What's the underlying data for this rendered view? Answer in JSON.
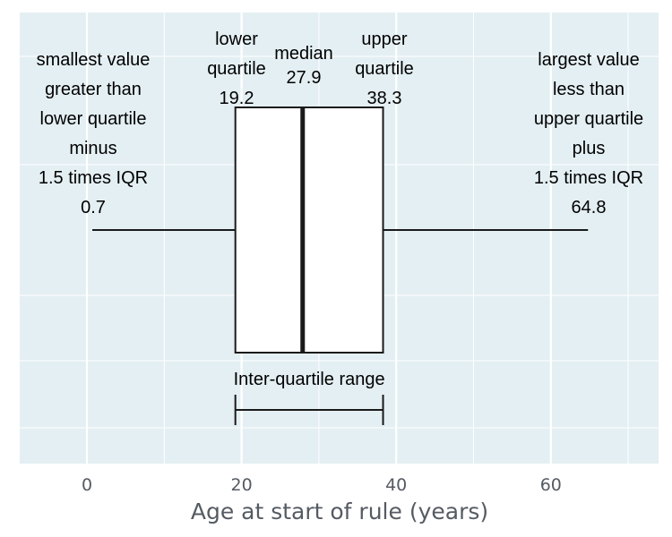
{
  "colors": {
    "panel_background": "#e4eff3",
    "grid_line": "#ffffff",
    "box_fill": "#ffffff",
    "stroke": "#1a1a1a",
    "axis_text": "#555b63"
  },
  "chart_data": {
    "type": "boxplot",
    "orientation": "horizontal",
    "title": "",
    "xlabel": "Age at start of rule (years)",
    "ylabel": "",
    "xlim": [
      -10,
      74
    ],
    "x_ticks": [
      0,
      20,
      40,
      60
    ],
    "grid": true,
    "stats": {
      "whisker_low": 0.7,
      "q1": 19.2,
      "median": 27.9,
      "q3": 38.3,
      "whisker_high": 64.8
    },
    "annotations": {
      "whisker_low": [
        "smallest value",
        "greater than",
        "lower quartile",
        "minus",
        "1.5 times IQR",
        "0.7"
      ],
      "q1": [
        "lower",
        "quartile",
        "19.2"
      ],
      "median": [
        "median",
        "27.9"
      ],
      "q3": [
        "upper",
        "quartile",
        "38.3"
      ],
      "whisker_high": [
        "largest value",
        "less than",
        "upper quartile",
        "plus",
        "1.5 times IQR",
        "64.8"
      ],
      "iqr": "Inter-quartile range"
    }
  }
}
